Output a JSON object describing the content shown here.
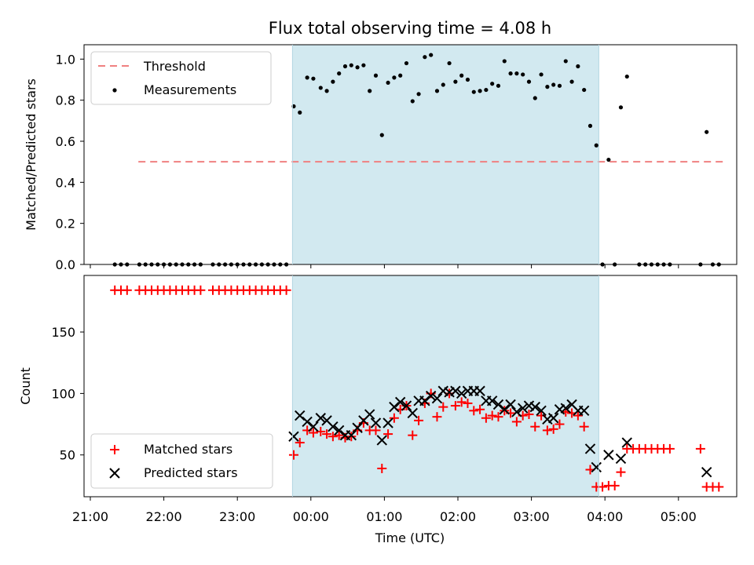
{
  "chart_data": [
    {
      "type": "scatter",
      "title": "Flux total observing time = 4.08 h",
      "ylabel": "Matched/Predicted stars",
      "xlabel": "",
      "ylim": [
        0,
        1.07
      ],
      "yticks": [
        "0.0",
        "0.2",
        "0.4",
        "0.6",
        "0.8",
        "1.0"
      ],
      "xlim": [
        "21:20",
        "05:40"
      ],
      "legend_position": "top-left",
      "observing_window": {
        "start": "23:45",
        "end": "03:55",
        "color": "#d2e9f0"
      },
      "threshold": {
        "label": "Threshold",
        "value": 0.5,
        "x_start": "21:20",
        "x_end": "05:40",
        "color": "#f08080"
      },
      "series": [
        {
          "name": "Measurements",
          "color": "#000000",
          "marker": "dot",
          "points": [
            [
              "21:20",
              0
            ],
            [
              "21:25",
              0
            ],
            [
              "21:30",
              0
            ],
            [
              "21:40",
              0
            ],
            [
              "21:45",
              0
            ],
            [
              "21:50",
              0
            ],
            [
              "21:55",
              0
            ],
            [
              "22:00",
              0
            ],
            [
              "22:05",
              0
            ],
            [
              "22:10",
              0
            ],
            [
              "22:15",
              0
            ],
            [
              "22:20",
              0
            ],
            [
              "22:25",
              0
            ],
            [
              "22:30",
              0
            ],
            [
              "22:40",
              0
            ],
            [
              "22:45",
              0
            ],
            [
              "22:50",
              0
            ],
            [
              "22:55",
              0
            ],
            [
              "23:00",
              0
            ],
            [
              "23:05",
              0
            ],
            [
              "23:10",
              0
            ],
            [
              "23:15",
              0
            ],
            [
              "23:20",
              0
            ],
            [
              "23:25",
              0
            ],
            [
              "23:30",
              0
            ],
            [
              "23:35",
              0
            ],
            [
              "23:40",
              0
            ],
            [
              "23:46",
              0.77
            ],
            [
              "23:51",
              0.74
            ],
            [
              "23:57",
              0.91
            ],
            [
              "00:02",
              0.905
            ],
            [
              "00:08",
              0.86
            ],
            [
              "00:13",
              0.845
            ],
            [
              "00:18",
              0.89
            ],
            [
              "00:23",
              0.93
            ],
            [
              "00:28",
              0.965
            ],
            [
              "00:33",
              0.97
            ],
            [
              "00:38",
              0.96
            ],
            [
              "00:43",
              0.97
            ],
            [
              "00:48",
              0.845
            ],
            [
              "00:53",
              0.92
            ],
            [
              "00:58",
              0.63
            ],
            [
              "01:03",
              0.885
            ],
            [
              "01:08",
              0.91
            ],
            [
              "01:13",
              0.92
            ],
            [
              "01:18",
              0.98
            ],
            [
              "01:23",
              0.795
            ],
            [
              "01:28",
              0.83
            ],
            [
              "01:33",
              1.01
            ],
            [
              "01:38",
              1.02
            ],
            [
              "01:43",
              0.845
            ],
            [
              "01:48",
              0.875
            ],
            [
              "01:53",
              0.98
            ],
            [
              "01:58",
              0.89
            ],
            [
              "02:03",
              0.92
            ],
            [
              "02:08",
              0.9
            ],
            [
              "02:13",
              0.84
            ],
            [
              "02:18",
              0.845
            ],
            [
              "02:23",
              0.85
            ],
            [
              "02:28",
              0.88
            ],
            [
              "02:33",
              0.87
            ],
            [
              "02:38",
              0.99
            ],
            [
              "02:43",
              0.93
            ],
            [
              "02:48",
              0.93
            ],
            [
              "02:53",
              0.925
            ],
            [
              "02:58",
              0.89
            ],
            [
              "03:03",
              0.81
            ],
            [
              "03:08",
              0.925
            ],
            [
              "03:13",
              0.865
            ],
            [
              "03:18",
              0.875
            ],
            [
              "03:23",
              0.87
            ],
            [
              "03:28",
              0.99
            ],
            [
              "03:33",
              0.89
            ],
            [
              "03:38",
              0.965
            ],
            [
              "03:43",
              0.85
            ],
            [
              "03:48",
              0.675
            ],
            [
              "03:53",
              0.58
            ],
            [
              "03:58",
              0
            ],
            [
              "04:03",
              0.51
            ],
            [
              "04:08",
              0
            ],
            [
              "04:13",
              0.765
            ],
            [
              "04:18",
              0.915
            ],
            [
              "04:28",
              0
            ],
            [
              "04:33",
              0
            ],
            [
              "04:38",
              0
            ],
            [
              "04:43",
              0
            ],
            [
              "04:48",
              0
            ],
            [
              "04:53",
              0
            ],
            [
              "05:18",
              0
            ],
            [
              "05:23",
              0.645
            ],
            [
              "05:28",
              0
            ],
            [
              "05:33",
              0
            ]
          ]
        }
      ]
    },
    {
      "type": "scatter",
      "title": "",
      "ylabel": "Count",
      "xlabel": "Time (UTC)",
      "ylim": [
        16,
        196
      ],
      "yticks": [
        "50",
        "100",
        "150"
      ],
      "xlim": [
        "21:00",
        "05:50"
      ],
      "xticks": [
        "21:00",
        "22:00",
        "23:00",
        "00:00",
        "01:00",
        "02:00",
        "03:00",
        "04:00",
        "05:00"
      ],
      "legend_position": "bottom-left",
      "observing_window": {
        "start": "23:45",
        "end": "03:55",
        "color": "#d2e9f0"
      },
      "series": [
        {
          "name": "Matched stars",
          "color": "#ff0000",
          "marker": "plus",
          "points": [
            [
              "21:20",
              184
            ],
            [
              "21:25",
              184
            ],
            [
              "21:30",
              184
            ],
            [
              "21:40",
              184
            ],
            [
              "21:45",
              184
            ],
            [
              "21:50",
              184
            ],
            [
              "21:55",
              184
            ],
            [
              "22:00",
              184
            ],
            [
              "22:05",
              184
            ],
            [
              "22:10",
              184
            ],
            [
              "22:15",
              184
            ],
            [
              "22:20",
              184
            ],
            [
              "22:25",
              184
            ],
            [
              "22:30",
              184
            ],
            [
              "22:40",
              184
            ],
            [
              "22:45",
              184
            ],
            [
              "22:50",
              184
            ],
            [
              "22:55",
              184
            ],
            [
              "23:00",
              184
            ],
            [
              "23:05",
              184
            ],
            [
              "23:10",
              184
            ],
            [
              "23:15",
              184
            ],
            [
              "23:20",
              184
            ],
            [
              "23:25",
              184
            ],
            [
              "23:30",
              184
            ],
            [
              "23:35",
              184
            ],
            [
              "23:40",
              184
            ],
            [
              "23:46",
              50
            ],
            [
              "23:51",
              60
            ],
            [
              "23:57",
              70
            ],
            [
              "00:02",
              68
            ],
            [
              "00:08",
              69
            ],
            [
              "00:13",
              67
            ],
            [
              "00:18",
              65
            ],
            [
              "00:23",
              66
            ],
            [
              "00:28",
              64
            ],
            [
              "00:33",
              65
            ],
            [
              "00:38",
              70
            ],
            [
              "00:43",
              76
            ],
            [
              "00:48",
              70
            ],
            [
              "00:53",
              70
            ],
            [
              "00:58",
              39
            ],
            [
              "01:03",
              67
            ],
            [
              "01:08",
              80
            ],
            [
              "01:13",
              87
            ],
            [
              "01:18",
              90
            ],
            [
              "01:23",
              66
            ],
            [
              "01:28",
              78
            ],
            [
              "01:33",
              92
            ],
            [
              "01:38",
              100
            ],
            [
              "01:43",
              81
            ],
            [
              "01:48",
              89
            ],
            [
              "01:53",
              100
            ],
            [
              "01:58",
              90
            ],
            [
              "02:03",
              93
            ],
            [
              "02:08",
              92
            ],
            [
              "02:13",
              86
            ],
            [
              "02:18",
              87
            ],
            [
              "02:23",
              80
            ],
            [
              "02:28",
              82
            ],
            [
              "02:33",
              81
            ],
            [
              "02:38",
              86
            ],
            [
              "02:43",
              84
            ],
            [
              "02:48",
              77
            ],
            [
              "02:53",
              82
            ],
            [
              "02:58",
              83
            ],
            [
              "03:03",
              73
            ],
            [
              "03:08",
              82
            ],
            [
              "03:13",
              70
            ],
            [
              "03:18",
              71
            ],
            [
              "03:23",
              75
            ],
            [
              "03:28",
              85
            ],
            [
              "03:33",
              84
            ],
            [
              "03:38",
              82
            ],
            [
              "03:43",
              73
            ],
            [
              "03:48",
              38
            ],
            [
              "03:53",
              24
            ],
            [
              "03:58",
              24
            ],
            [
              "04:03",
              25
            ],
            [
              "04:08",
              25
            ],
            [
              "04:13",
              36
            ],
            [
              "04:18",
              55
            ],
            [
              "04:23",
              55
            ],
            [
              "04:28",
              55
            ],
            [
              "04:33",
              55
            ],
            [
              "04:38",
              55
            ],
            [
              "04:43",
              55
            ],
            [
              "04:48",
              55
            ],
            [
              "04:53",
              55
            ],
            [
              "05:18",
              55
            ],
            [
              "05:23",
              24
            ],
            [
              "05:28",
              24
            ],
            [
              "05:33",
              24
            ]
          ]
        },
        {
          "name": "Predicted stars",
          "color": "#000000",
          "marker": "x",
          "points": [
            [
              "23:46",
              65
            ],
            [
              "23:51",
              82
            ],
            [
              "23:57",
              77
            ],
            [
              "00:02",
              73
            ],
            [
              "00:08",
              80
            ],
            [
              "00:13",
              78
            ],
            [
              "00:18",
              73
            ],
            [
              "00:23",
              70
            ],
            [
              "00:28",
              66
            ],
            [
              "00:33",
              66
            ],
            [
              "00:38",
              72
            ],
            [
              "00:43",
              78
            ],
            [
              "00:48",
              83
            ],
            [
              "00:53",
              76
            ],
            [
              "00:58",
              62
            ],
            [
              "01:03",
              76
            ],
            [
              "01:08",
              89
            ],
            [
              "01:13",
              93
            ],
            [
              "01:18",
              90
            ],
            [
              "01:23",
              84
            ],
            [
              "01:28",
              94
            ],
            [
              "01:33",
              94
            ],
            [
              "01:38",
              98
            ],
            [
              "01:43",
              96
            ],
            [
              "01:48",
              102
            ],
            [
              "01:53",
              101
            ],
            [
              "01:58",
              102
            ],
            [
              "02:03",
              100
            ],
            [
              "02:08",
              102
            ],
            [
              "02:13",
              102
            ],
            [
              "02:18",
              102
            ],
            [
              "02:23",
              94
            ],
            [
              "02:28",
              94
            ],
            [
              "02:33",
              91
            ],
            [
              "02:38",
              87
            ],
            [
              "02:43",
              91
            ],
            [
              "02:48",
              85
            ],
            [
              "02:53",
              88
            ],
            [
              "02:58",
              90
            ],
            [
              "03:03",
              89
            ],
            [
              "03:08",
              86
            ],
            [
              "03:13",
              79
            ],
            [
              "03:18",
              80
            ],
            [
              "03:23",
              87
            ],
            [
              "03:28",
              88
            ],
            [
              "03:33",
              91
            ],
            [
              "03:38",
              86
            ],
            [
              "03:43",
              86
            ],
            [
              "03:48",
              55
            ],
            [
              "03:53",
              40
            ],
            [
              "04:03",
              50
            ],
            [
              "04:13",
              47
            ],
            [
              "04:18",
              60
            ],
            [
              "05:23",
              36
            ]
          ]
        }
      ]
    }
  ]
}
